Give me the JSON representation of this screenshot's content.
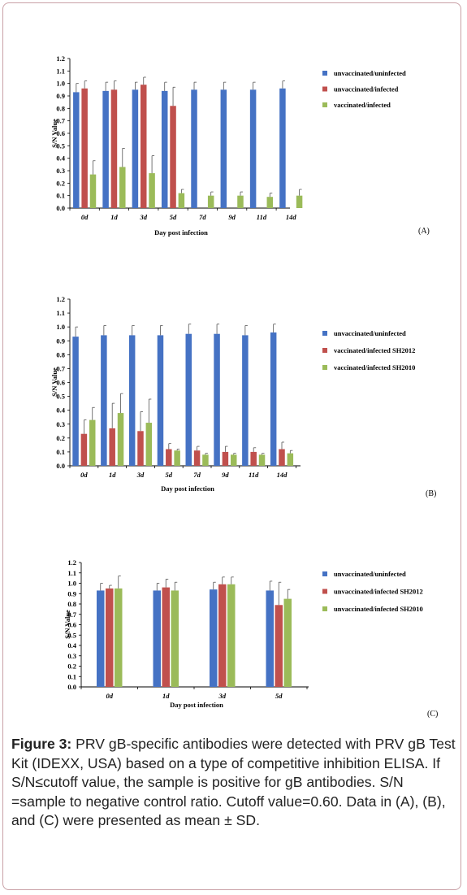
{
  "chart_data": [
    {
      "type": "bar",
      "panel_label": "(A)",
      "xlabel": "Day post infection",
      "ylabel": "S/N Value",
      "ylim": [
        0,
        1.2
      ],
      "yticks": [
        "0.0",
        "0.1",
        "0.2",
        "0.3",
        "0.4",
        "0.5",
        "0.6",
        "0.7",
        "0.8",
        "0.9",
        "1.0",
        "1.1",
        "1.2"
      ],
      "categories": [
        "0d",
        "1d",
        "3d",
        "5d",
        "7d",
        "9d",
        "11d",
        "14d"
      ],
      "legend_position": "right",
      "series": [
        {
          "name": "unvaccinated/uninfected",
          "color": "#4572c4",
          "values": [
            0.93,
            0.94,
            0.95,
            0.94,
            0.95,
            0.95,
            0.95,
            0.96
          ],
          "errors": [
            0.07,
            0.07,
            0.06,
            0.07,
            0.06,
            0.06,
            0.06,
            0.06
          ]
        },
        {
          "name": "unvaccinated/infected",
          "color": "#c0504d",
          "values": [
            0.96,
            0.95,
            0.99,
            0.82,
            null,
            null,
            null,
            null
          ],
          "errors": [
            0.06,
            0.07,
            0.06,
            0.15,
            null,
            null,
            null,
            null
          ]
        },
        {
          "name": "vaccinated/infected",
          "color": "#9bbb59",
          "values": [
            0.27,
            0.33,
            0.28,
            0.12,
            0.1,
            0.1,
            0.09,
            0.1
          ],
          "errors": [
            0.11,
            0.15,
            0.14,
            0.03,
            0.03,
            0.03,
            0.03,
            0.05
          ]
        }
      ]
    },
    {
      "type": "bar",
      "panel_label": "(B)",
      "xlabel": "Day post infection",
      "ylabel": "S/N Value",
      "ylim": [
        0,
        1.2
      ],
      "yticks": [
        "0.0",
        "0.1",
        "0.2",
        "0.3",
        "0.4",
        "0.5",
        "0.6",
        "0.7",
        "0.8",
        "0.9",
        "1.0",
        "1.1",
        "1.2"
      ],
      "categories": [
        "0d",
        "1d",
        "3d",
        "5d",
        "7d",
        "9d",
        "11d",
        "14d"
      ],
      "legend_position": "right",
      "series": [
        {
          "name": "unvaccinated/uninfected",
          "color": "#4572c4",
          "values": [
            0.93,
            0.94,
            0.94,
            0.94,
            0.95,
            0.95,
            0.94,
            0.96
          ],
          "errors": [
            0.07,
            0.07,
            0.07,
            0.07,
            0.07,
            0.07,
            0.07,
            0.06
          ]
        },
        {
          "name": "vaccinated/infected SH2012",
          "color": "#c0504d",
          "values": [
            0.23,
            0.27,
            0.25,
            0.12,
            0.11,
            0.1,
            0.1,
            0.12
          ],
          "errors": [
            0.1,
            0.18,
            0.14,
            0.04,
            0.03,
            0.04,
            0.03,
            0.05
          ]
        },
        {
          "name": "vaccinated/infected SH2010",
          "color": "#9bbb59",
          "values": [
            0.33,
            0.38,
            0.31,
            0.11,
            0.08,
            0.08,
            0.08,
            0.09
          ],
          "errors": [
            0.09,
            0.14,
            0.17,
            0.01,
            0.01,
            0.01,
            0.01,
            0.02
          ]
        }
      ]
    },
    {
      "type": "bar",
      "panel_label": "(C)",
      "xlabel": "Day post infection",
      "ylabel": "S/N Value",
      "ylim": [
        0,
        1.2
      ],
      "yticks": [
        "0.0",
        "0.1",
        "0.2",
        "0.3",
        "0.4",
        "0.5",
        "0.6",
        "0.7",
        "0.8",
        "0.9",
        "1.0",
        "1.1",
        "1.2"
      ],
      "categories": [
        "0d",
        "1d",
        "3d",
        "5d"
      ],
      "legend_position": "right",
      "series": [
        {
          "name": "unvaccinated/uninfected",
          "color": "#4572c4",
          "values": [
            0.93,
            0.93,
            0.94,
            0.93
          ],
          "errors": [
            0.07,
            0.07,
            0.07,
            0.09
          ]
        },
        {
          "name": "unvaccinated/infected SH2012",
          "color": "#c0504d",
          "values": [
            0.95,
            0.96,
            0.99,
            0.79
          ],
          "errors": [
            0.03,
            0.08,
            0.07,
            0.22
          ]
        },
        {
          "name": "unvaccinated/infected SH2010",
          "color": "#9bbb59",
          "values": [
            0.95,
            0.93,
            0.99,
            0.85
          ],
          "errors": [
            0.12,
            0.08,
            0.07,
            0.09
          ]
        }
      ]
    }
  ],
  "caption": {
    "label": "Figure 3:",
    "text": " PRV gB-specific antibodies were detected with PRV gB Test Kit (IDEXX, USA) based on a type of competitive inhibition ELISA. If S/N≤cutoff value, the sample is positive for gB antibodies. S/N =sample to negative control ratio. Cutoff value=0.60. Data in (A), (B), and (C) were presented as mean ± SD."
  }
}
